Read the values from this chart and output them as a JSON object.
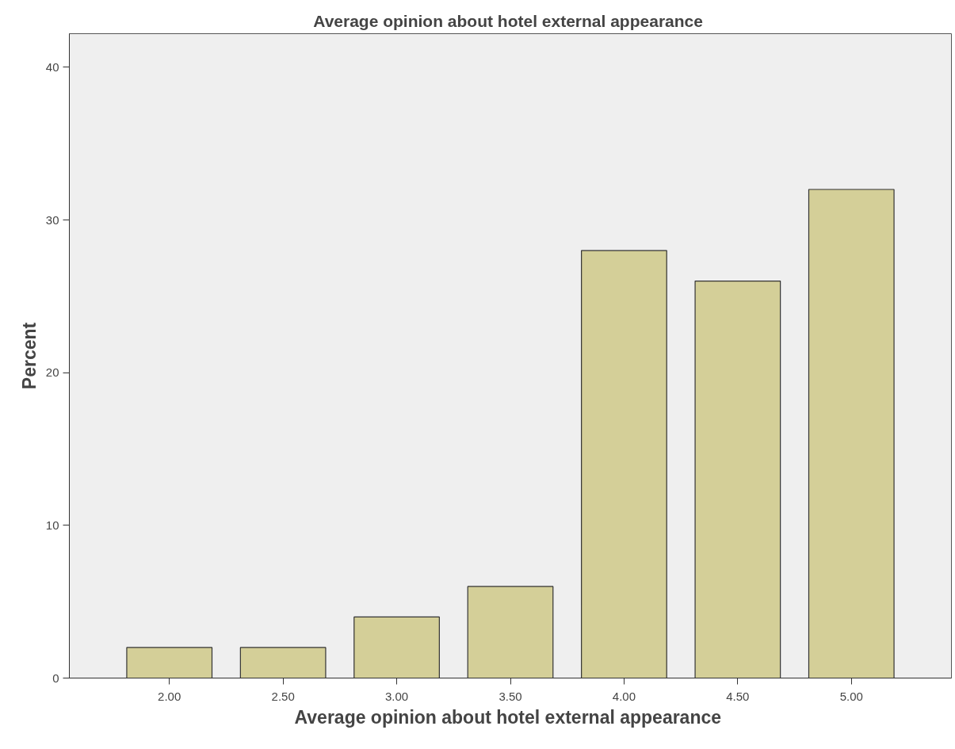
{
  "chart_data": {
    "type": "bar",
    "title": "Average opinion about  hotel external appearance",
    "xlabel": "Average opinion about  hotel external appearance",
    "ylabel": "Percent",
    "categories": [
      "2.00",
      "2.50",
      "3.00",
      "3.50",
      "4.00",
      "4.50",
      "5.00"
    ],
    "values": [
      2,
      2,
      4,
      6,
      28,
      26,
      32
    ],
    "color": "#d4cf98",
    "ylim": [
      0,
      42.2
    ],
    "yticks": [
      0,
      10,
      20,
      30,
      40
    ],
    "grid": false
  }
}
